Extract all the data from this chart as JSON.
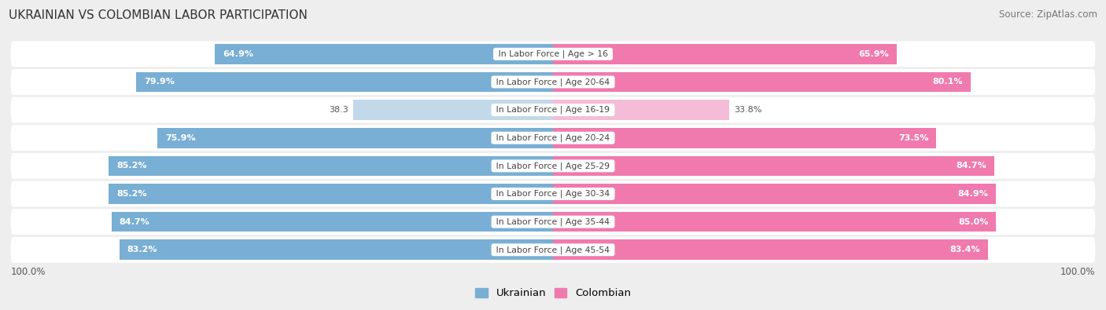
{
  "title": "UKRAINIAN VS COLOMBIAN LABOR PARTICIPATION",
  "source": "Source: ZipAtlas.com",
  "categories": [
    "In Labor Force | Age > 16",
    "In Labor Force | Age 20-64",
    "In Labor Force | Age 16-19",
    "In Labor Force | Age 20-24",
    "In Labor Force | Age 25-29",
    "In Labor Force | Age 30-34",
    "In Labor Force | Age 35-44",
    "In Labor Force | Age 45-54"
  ],
  "ukrainian": [
    64.9,
    79.9,
    38.3,
    75.9,
    85.2,
    85.2,
    84.7,
    83.2
  ],
  "colombian": [
    65.9,
    80.1,
    33.8,
    73.5,
    84.7,
    84.9,
    85.0,
    83.4
  ],
  "ukrainian_color": "#79afd4",
  "ukrainian_color_light": "#c2d9ea",
  "colombian_color": "#f07aae",
  "colombian_color_light": "#f5bcd7",
  "bg_color": "#eeeeee",
  "row_bg_color": "#ffffff",
  "center_label_color": "#444444",
  "bar_height": 0.72,
  "max_value": 100.0,
  "figsize": [
    14.06,
    3.95
  ],
  "dpi": 100,
  "threshold": 50
}
